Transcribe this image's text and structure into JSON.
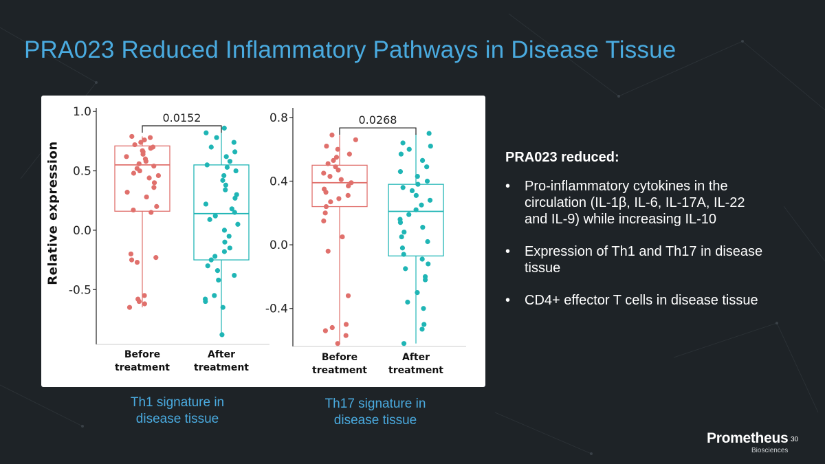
{
  "slide": {
    "title": "PRA023 Reduced Inflammatory Pathways in Disease Tissue",
    "page_number": "30"
  },
  "colors": {
    "title": "#4aabe0",
    "before": "#e0706c",
    "after": "#1fb5b5",
    "background": "#1e2327"
  },
  "captions": {
    "th1": [
      "Th1 signature in",
      "disease tissue"
    ],
    "th17": [
      "Th17 signature in",
      "disease tissue"
    ]
  },
  "right_panel": {
    "heading": "PRA023 reduced:",
    "bullet_symbol": "•",
    "bullets": [
      [
        "Pro-inflammatory cytokines in the",
        "circulation (IL-1β, IL-6, IL-17A, IL-22",
        "and IL-9) while increasing IL-10"
      ],
      [
        "Expression of Th1 and Th17 in disease",
        "tissue"
      ],
      [
        "CD4+ effector T cells in disease tissue"
      ]
    ]
  },
  "logo": {
    "name": "Prometheus",
    "subtitle": "Biosciences"
  },
  "chart_data": [
    {
      "type": "box",
      "ylabel": "Relative expression",
      "ylim": [
        -0.95,
        1.03
      ],
      "yticks": [
        -0.5,
        0.0,
        0.5,
        1.0
      ],
      "ytick_labels": [
        "-0.5",
        "0.0",
        "0.5",
        "1.0"
      ],
      "categories": [
        [
          "Before",
          "treatment"
        ],
        [
          "After",
          "treatment"
        ]
      ],
      "pvalue": "0.0152",
      "series": [
        {
          "box": {
            "whisker_low": -0.65,
            "q1": 0.16,
            "median": 0.55,
            "q3": 0.71,
            "whisker_high": 0.79
          },
          "points": [
            0.79,
            0.78,
            0.76,
            0.74,
            0.72,
            0.7,
            0.69,
            0.67,
            0.66,
            0.64,
            0.62,
            0.6,
            0.58,
            0.56,
            0.54,
            0.52,
            0.5,
            0.48,
            0.46,
            0.44,
            0.4,
            0.36,
            0.32,
            0.28,
            0.2,
            0.17,
            0.15,
            -0.2,
            -0.23,
            -0.25,
            -0.27,
            -0.55,
            -0.58,
            -0.6,
            -0.62,
            -0.65
          ]
        },
        {
          "box": {
            "whisker_low": -0.88,
            "q1": -0.25,
            "median": 0.14,
            "q3": 0.55,
            "whisker_high": 0.86
          },
          "points": [
            0.86,
            0.82,
            0.78,
            0.74,
            0.7,
            0.66,
            0.62,
            0.58,
            0.55,
            0.53,
            0.5,
            0.46,
            0.42,
            0.38,
            0.34,
            0.3,
            0.27,
            0.22,
            0.18,
            0.15,
            0.12,
            0.09,
            0.05,
            0.0,
            -0.05,
            -0.1,
            -0.15,
            -0.18,
            -0.22,
            -0.25,
            -0.3,
            -0.34,
            -0.38,
            -0.42,
            -0.55,
            -0.58,
            -0.6,
            -0.65,
            -0.88
          ]
        }
      ]
    },
    {
      "type": "box",
      "ylim": [
        -0.63,
        0.86
      ],
      "yticks": [
        -0.4,
        0.0,
        0.4,
        0.8
      ],
      "ytick_labels": [
        "-0.4",
        "0.0",
        "0.4",
        "0.8"
      ],
      "categories": [
        [
          "Before",
          "treatment"
        ],
        [
          "After",
          "treatment"
        ]
      ],
      "pvalue": "0.0268",
      "series": [
        {
          "box": {
            "whisker_low": -0.62,
            "q1": 0.24,
            "median": 0.39,
            "q3": 0.5,
            "whisker_high": 0.69
          },
          "points": [
            0.69,
            0.66,
            0.62,
            0.6,
            0.57,
            0.55,
            0.53,
            0.51,
            0.49,
            0.47,
            0.45,
            0.43,
            0.41,
            0.39,
            0.37,
            0.35,
            0.33,
            0.31,
            0.29,
            0.27,
            0.24,
            0.2,
            0.15,
            0.05,
            -0.04,
            -0.32,
            -0.5,
            -0.52,
            -0.54,
            -0.57,
            -0.62
          ]
        },
        {
          "box": {
            "whisker_low": -0.62,
            "q1": -0.07,
            "median": 0.21,
            "q3": 0.38,
            "whisker_high": 0.7
          },
          "points": [
            0.7,
            0.64,
            0.62,
            0.6,
            0.57,
            0.53,
            0.49,
            0.46,
            0.43,
            0.4,
            0.38,
            0.36,
            0.34,
            0.31,
            0.28,
            0.25,
            0.22,
            0.19,
            0.16,
            0.14,
            0.11,
            0.08,
            0.05,
            0.02,
            -0.02,
            -0.06,
            -0.09,
            -0.12,
            -0.15,
            -0.2,
            -0.22,
            -0.3,
            -0.36,
            -0.4,
            -0.5,
            -0.53,
            -0.62
          ]
        }
      ]
    }
  ]
}
